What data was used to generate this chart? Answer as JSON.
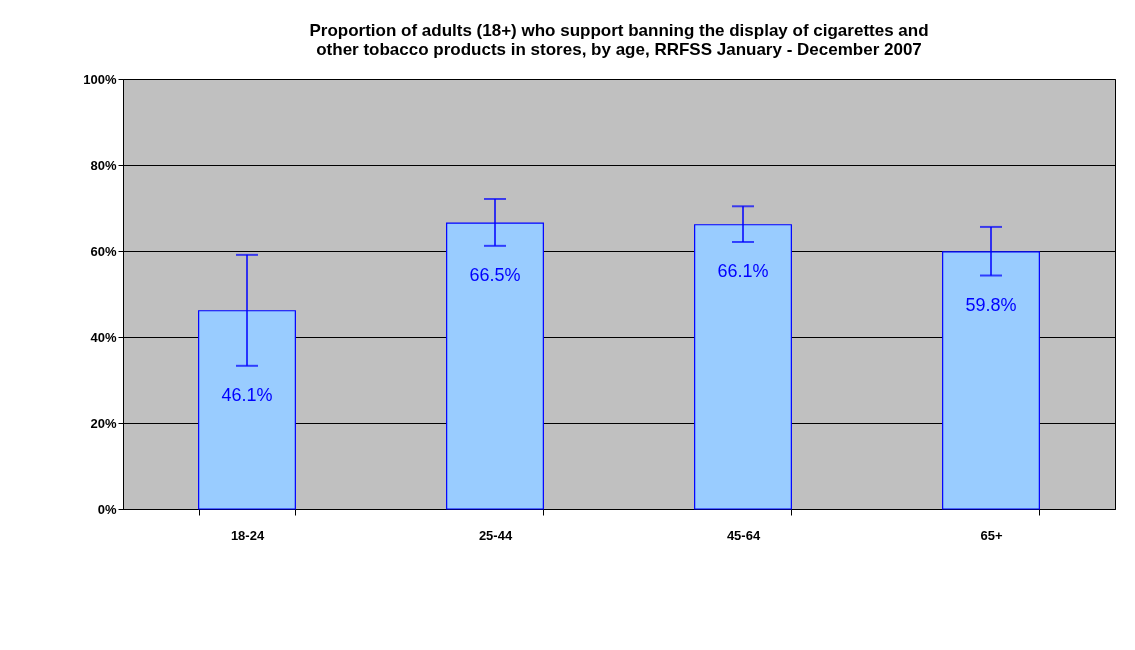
{
  "chart_data": {
    "type": "bar",
    "title": "Proportion of adults (18+) who support banning the display of cigarettes and\nother tobacco products in stores, by age, RRFSS January - December 2007",
    "categories": [
      "18-24",
      "25-44",
      "45-64",
      "65+"
    ],
    "values": [
      46.1,
      66.5,
      66.1,
      59.8
    ],
    "value_labels": [
      "46.1%",
      "66.5%",
      "66.1%",
      "59.8%"
    ],
    "errors": [
      [
        33.3,
        59.1
      ],
      [
        61.2,
        72.1
      ],
      [
        62.1,
        70.4
      ],
      [
        54.3,
        65.6
      ]
    ],
    "color": "#99ccff",
    "ylim": [
      0,
      100
    ],
    "yticks": [
      {
        "value": 0,
        "label": "0%"
      },
      {
        "value": 20,
        "label": "20%"
      },
      {
        "value": 40,
        "label": "40%"
      },
      {
        "value": 60,
        "label": "60%"
      },
      {
        "value": 80,
        "label": "80%"
      },
      {
        "value": 100,
        "label": "100%"
      }
    ],
    "grid": "y"
  }
}
